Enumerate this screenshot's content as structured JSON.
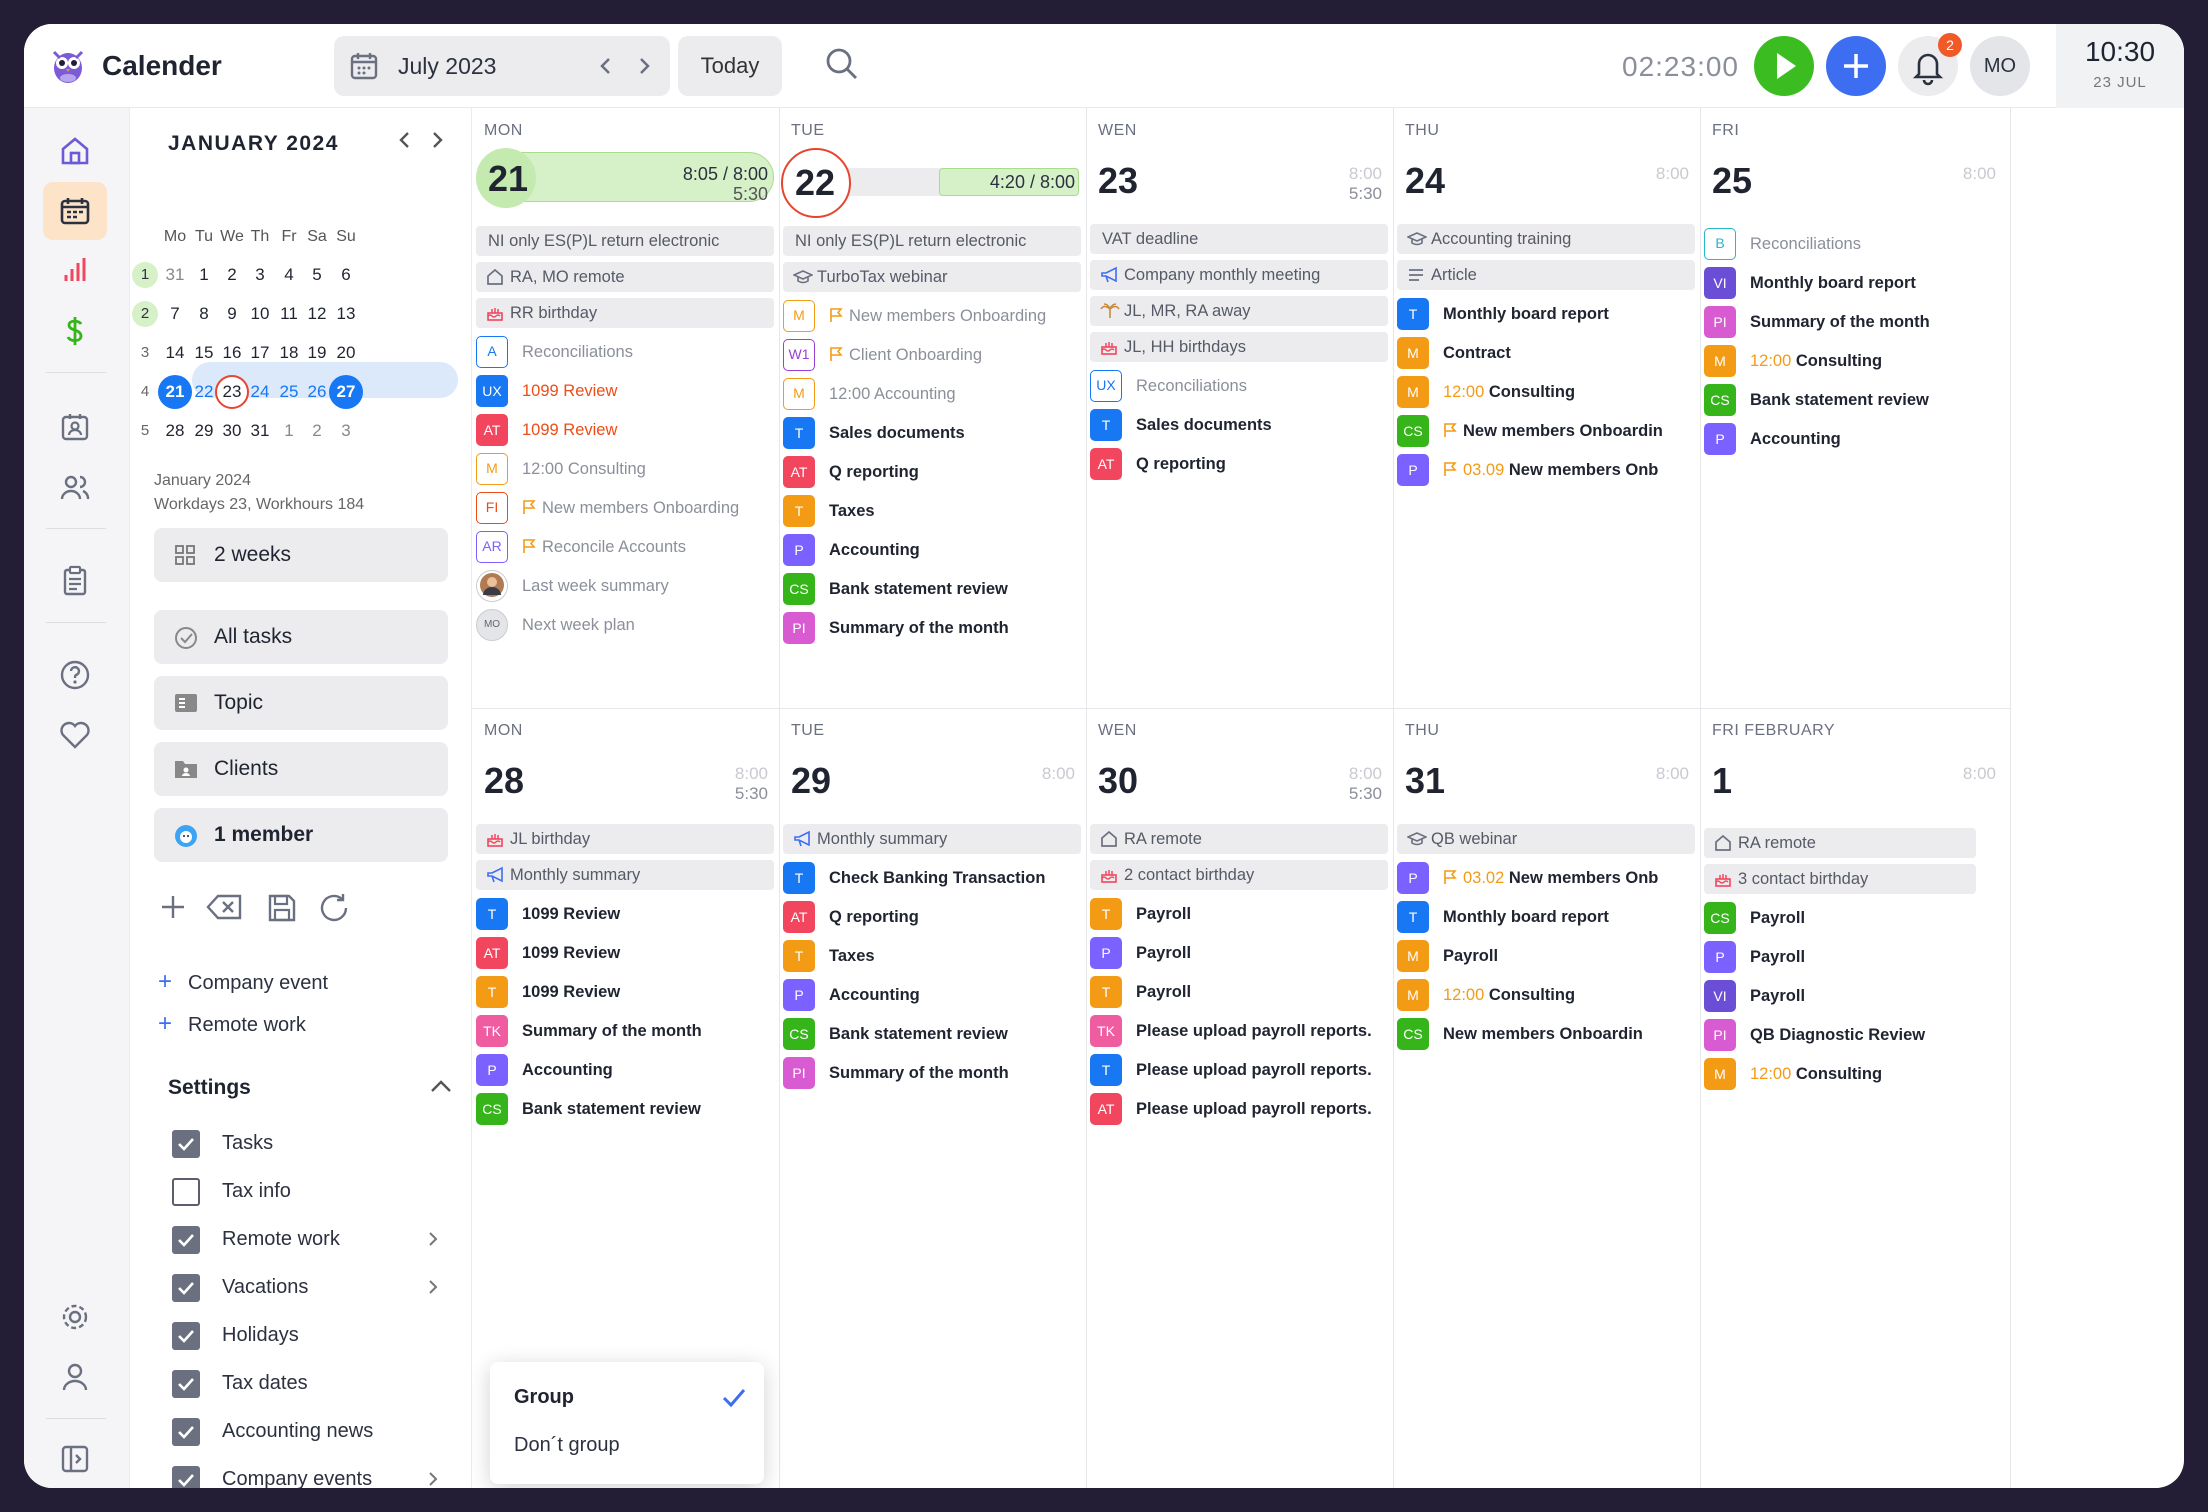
{
  "app": {
    "title": "Calender"
  },
  "topbar": {
    "date": "July 2023",
    "today": "Today",
    "timer": "02:23:00",
    "notif": "2",
    "avatar": "MO",
    "clock_time": "10:30",
    "clock_date": "23 JUL"
  },
  "mini": {
    "month": "JANUARY 2024",
    "headers": [
      "Mo",
      "Tu",
      "We",
      "Th",
      "Fr",
      "Sa",
      "Su"
    ],
    "weeks": [
      {
        "n": "1",
        "d": [
          "31",
          "1",
          "2",
          "3",
          "4",
          "5",
          "6"
        ]
      },
      {
        "n": "2",
        "d": [
          "7",
          "8",
          "9",
          "10",
          "11",
          "12",
          "13"
        ]
      },
      {
        "n": "3",
        "d": [
          "14",
          "15",
          "16",
          "17",
          "18",
          "19",
          "20"
        ]
      },
      {
        "n": "4",
        "d": [
          "21",
          "22",
          "23",
          "24",
          "25",
          "26",
          "27"
        ]
      },
      {
        "n": "5",
        "d": [
          "28",
          "29",
          "30",
          "31",
          "1",
          "2",
          "3"
        ]
      }
    ],
    "summary1": "January 2024",
    "summary2": "Workdays 23, Workhours 184"
  },
  "side": {
    "view": "2 weeks",
    "all": "All tasks",
    "topic": "Topic",
    "clients": "Clients",
    "member": "1 member",
    "company_event": "Company event",
    "remote_work": "Remote work",
    "settings": "Settings",
    "checks": [
      {
        "l": "Tasks",
        "on": true
      },
      {
        "l": "Tax info",
        "on": false
      },
      {
        "l": "Remote work",
        "on": true,
        "arr": true
      },
      {
        "l": "Vacations",
        "on": true,
        "arr": true
      },
      {
        "l": "Holidays",
        "on": true
      },
      {
        "l": "Tax dates",
        "on": true
      },
      {
        "l": "Accounting news",
        "on": true
      },
      {
        "l": "Company events",
        "on": true,
        "arr": true
      }
    ]
  },
  "dropdown": {
    "group": "Group",
    "dont": "Don´t group"
  },
  "colors": {
    "T": "#1877f2",
    "AT": "#f2465f",
    "M": "#f49b16",
    "P": "#7b61ff",
    "CS": "#35b51a",
    "PI": "#d95bd1",
    "TK": "#ef5ca0",
    "VI": "#6b4ed6",
    "UX": "#1877f2",
    "A": "#1877f2",
    "B": "#28b6c9",
    "FI": "#ee4c17",
    "AR": "#7b61ff",
    "W1": "#9b3fd6"
  },
  "days": [
    {
      "name": "MON",
      "num": "21",
      "hrs": "8:05 / 8:00",
      "sub": "5:30",
      "events": [
        {
          "k": "band",
          "i": "none",
          "t": "NI only ES(P)L return electronic"
        },
        {
          "k": "band",
          "i": "home",
          "t": "RA, MO remote"
        },
        {
          "k": "band",
          "i": "cake",
          "t": "RR birthday"
        },
        {
          "k": "task",
          "b": "A",
          "ol": true,
          "t": "Reconciliations",
          "s": "g"
        },
        {
          "k": "task",
          "b": "UX",
          "t": "1099 Review",
          "s": "r"
        },
        {
          "k": "task",
          "b": "AT",
          "t": "1099 Review",
          "s": "r"
        },
        {
          "k": "task",
          "b": "M",
          "ol": true,
          "t": "12:00 Consulting",
          "s": "g"
        },
        {
          "k": "task",
          "b": "FI",
          "ol": true,
          "f": true,
          "t": "New members Onboarding",
          "s": "g"
        },
        {
          "k": "task",
          "b": "AR",
          "ol": true,
          "f": true,
          "t": "Reconcile Accounts",
          "s": "g"
        },
        {
          "k": "task",
          "b": "photo",
          "t": "Last week summary",
          "s": "g"
        },
        {
          "k": "task",
          "b": "MO",
          "t": "Next week plan",
          "s": "g"
        }
      ]
    },
    {
      "name": "TUE",
      "num": "22",
      "hrs": "4:20 / 8:00",
      "sub": "",
      "events": [
        {
          "k": "band",
          "i": "none",
          "t": "NI only ES(P)L return electronic"
        },
        {
          "k": "band",
          "i": "cap",
          "t": "TurboTax webinar"
        },
        {
          "k": "task",
          "b": "M",
          "ol": true,
          "f": true,
          "t": "New members Onboarding",
          "s": "g"
        },
        {
          "k": "task",
          "b": "W1",
          "ol": true,
          "f": true,
          "t": "Client Onboarding",
          "s": "g"
        },
        {
          "k": "task",
          "b": "M",
          "ol": true,
          "t": "12:00 Accounting",
          "s": "g"
        },
        {
          "k": "task",
          "b": "T",
          "t": "Sales documents"
        },
        {
          "k": "task",
          "b": "AT",
          "t": "Q reporting"
        },
        {
          "k": "task",
          "b": "T",
          "c": "M",
          "t": "Taxes"
        },
        {
          "k": "task",
          "b": "P",
          "t": "Accounting"
        },
        {
          "k": "task",
          "b": "CS",
          "t": "Bank statement review"
        },
        {
          "k": "task",
          "b": "PI",
          "t": "Summary of the month"
        }
      ]
    },
    {
      "name": "WEN",
      "num": "23",
      "hrs": "8:00",
      "sub": "5:30",
      "events": [
        {
          "k": "band",
          "i": "none",
          "t": "VAT deadline"
        },
        {
          "k": "band",
          "i": "mega",
          "t": "Company monthly meeting"
        },
        {
          "k": "band",
          "i": "palm",
          "t": "JL, MR, RA away"
        },
        {
          "k": "band",
          "i": "cake",
          "t": "JL, HH birthdays"
        },
        {
          "k": "task",
          "b": "UX",
          "ol": true,
          "t": "Reconciliations",
          "s": "g"
        },
        {
          "k": "task",
          "b": "T",
          "t": "Sales documents"
        },
        {
          "k": "task",
          "b": "AT",
          "t": "Q reporting"
        }
      ]
    },
    {
      "name": "THU",
      "num": "24",
      "hrs": "8:00",
      "sub": "",
      "events": [
        {
          "k": "band",
          "i": "cap",
          "t": "Accounting training"
        },
        {
          "k": "band",
          "i": "lines",
          "t": "Article"
        },
        {
          "k": "task",
          "b": "T",
          "t": "Monthly board report"
        },
        {
          "k": "task",
          "b": "M",
          "t": "Contract"
        },
        {
          "k": "task",
          "b": "M",
          "tm": "12:00",
          "t": "Consulting"
        },
        {
          "k": "task",
          "b": "CS",
          "f": true,
          "t": "New members Onboardin"
        },
        {
          "k": "task",
          "b": "P",
          "f": true,
          "tm": "03.09",
          "t": "New members Onb"
        }
      ]
    },
    {
      "name": "FRI",
      "num": "25",
      "hrs": "8:00",
      "sub": "",
      "events": [
        {
          "k": "task",
          "b": "B",
          "ol": true,
          "t": "Reconciliations",
          "s": "g"
        },
        {
          "k": "task",
          "b": "VI",
          "t": "Monthly board report"
        },
        {
          "k": "task",
          "b": "PI",
          "t": "Summary of the month"
        },
        {
          "k": "task",
          "b": "M",
          "tm": "12:00",
          "t": "Consulting"
        },
        {
          "k": "task",
          "b": "CS",
          "t": "Bank statement review"
        },
        {
          "k": "task",
          "b": "P",
          "t": "Accounting"
        }
      ]
    },
    {
      "name": "MON",
      "num": "28",
      "hrs": "8:00",
      "sub": "5:30",
      "events": [
        {
          "k": "band",
          "i": "cake",
          "t": "JL birthday"
        },
        {
          "k": "band",
          "i": "mega",
          "t": "Monthly summary"
        },
        {
          "k": "task",
          "b": "T",
          "t": "1099 Review"
        },
        {
          "k": "task",
          "b": "AT",
          "t": "1099 Review"
        },
        {
          "k": "task",
          "b": "T",
          "c": "M",
          "t": "1099 Review"
        },
        {
          "k": "task",
          "b": "TK",
          "t": "Summary of the month"
        },
        {
          "k": "task",
          "b": "P",
          "t": "Accounting"
        },
        {
          "k": "task",
          "b": "CS",
          "t": "Bank statement review"
        }
      ]
    },
    {
      "name": "TUE",
      "num": "29",
      "hrs": "8:00",
      "sub": "",
      "events": [
        {
          "k": "band",
          "i": "mega",
          "t": "Monthly summary"
        },
        {
          "k": "task",
          "b": "T",
          "t": "Check Banking Transaction"
        },
        {
          "k": "task",
          "b": "AT",
          "t": "Q reporting"
        },
        {
          "k": "task",
          "b": "T",
          "c": "M",
          "t": "Taxes"
        },
        {
          "k": "task",
          "b": "P",
          "t": "Accounting"
        },
        {
          "k": "task",
          "b": "CS",
          "t": "Bank statement review"
        },
        {
          "k": "task",
          "b": "PI",
          "t": "Summary of the month"
        }
      ]
    },
    {
      "name": "WEN",
      "num": "30",
      "hrs": "8:00",
      "sub": "5:30",
      "events": [
        {
          "k": "band",
          "i": "home",
          "t": "RA remote"
        },
        {
          "k": "band",
          "i": "cake",
          "t": "2 contact birthday"
        },
        {
          "k": "task",
          "b": "T",
          "c": "M",
          "t": "Payroll"
        },
        {
          "k": "task",
          "b": "P",
          "t": "Payroll"
        },
        {
          "k": "task",
          "b": "T",
          "c": "M",
          "t": "Payroll"
        },
        {
          "k": "task",
          "b": "TK",
          "t": "Please upload payroll reports."
        },
        {
          "k": "task",
          "b": "T",
          "t": "Please upload payroll reports."
        },
        {
          "k": "task",
          "b": "AT",
          "t": "Please upload payroll reports."
        }
      ]
    },
    {
      "name": "THU",
      "num": "31",
      "hrs": "8:00",
      "sub": "",
      "events": [
        {
          "k": "band",
          "i": "cap",
          "t": "QB webinar"
        },
        {
          "k": "task",
          "b": "P",
          "f": true,
          "tm": "03.02",
          "t": "New members Onb"
        },
        {
          "k": "task",
          "b": "T",
          "t": "Monthly board report"
        },
        {
          "k": "task",
          "b": "M",
          "t": "Payroll"
        },
        {
          "k": "task",
          "b": "M",
          "tm": "12:00",
          "t": "Consulting"
        },
        {
          "k": "task",
          "b": "CS",
          "t": "New members Onboardin"
        }
      ]
    },
    {
      "name": "FRI  FEBRUARY",
      "num": "1",
      "hrs": "8:00",
      "sub": "",
      "events": [
        {
          "k": "band",
          "i": "home",
          "t": "RA remote"
        },
        {
          "k": "band",
          "i": "cake",
          "t": "3 contact birthday"
        },
        {
          "k": "task",
          "b": "CS",
          "t": "Payroll"
        },
        {
          "k": "task",
          "b": "P",
          "t": "Payroll"
        },
        {
          "k": "task",
          "b": "VI",
          "t": "Payroll"
        },
        {
          "k": "task",
          "b": "PI",
          "t": "QB Diagnostic Review"
        },
        {
          "k": "task",
          "b": "M",
          "tm": "12:00",
          "t": "Consulting"
        }
      ]
    }
  ]
}
